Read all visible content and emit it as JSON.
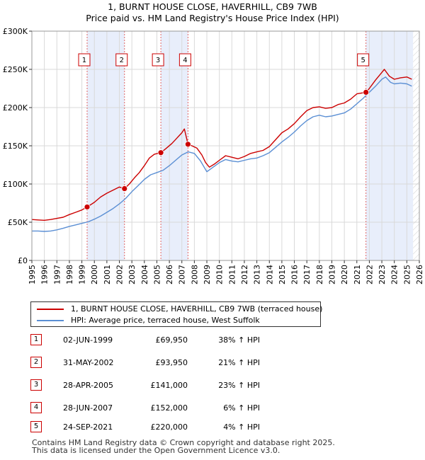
{
  "chart_data": {
    "type": "line",
    "title": "1, BURNT HOUSE CLOSE, HAVERHILL, CB9 7WB",
    "subtitle": "Price paid vs. HM Land Registry's House Price Index (HPI)",
    "xlabel": "",
    "ylabel": "",
    "xlim": [
      1995,
      2026
    ],
    "ylim": [
      0,
      300000
    ],
    "x_ticks": [
      "1995",
      "1996",
      "1997",
      "1998",
      "1999",
      "2000",
      "2001",
      "2002",
      "2003",
      "2004",
      "2005",
      "2006",
      "2007",
      "2008",
      "2009",
      "2010",
      "2011",
      "2012",
      "2013",
      "2014",
      "2015",
      "2016",
      "2017",
      "2018",
      "2019",
      "2020",
      "2021",
      "2022",
      "2023",
      "2024",
      "2025",
      "2026"
    ],
    "y_ticks": [
      {
        "value": 0,
        "label": "£0"
      },
      {
        "value": 50000,
        "label": "£50K"
      },
      {
        "value": 100000,
        "label": "£100K"
      },
      {
        "value": 150000,
        "label": "£150K"
      },
      {
        "value": 200000,
        "label": "£200K"
      },
      {
        "value": 250000,
        "label": "£250K"
      },
      {
        "value": 300000,
        "label": "£300K"
      }
    ],
    "grid": true,
    "series": [
      {
        "name": "1, BURNT HOUSE CLOSE, HAVERHILL, CB9 7WB (terraced house)",
        "color": "#cc0000",
        "points": [
          [
            1995.0,
            53500
          ],
          [
            1995.5,
            53000
          ],
          [
            1996.0,
            52500
          ],
          [
            1996.5,
            53500
          ],
          [
            1997.0,
            55000
          ],
          [
            1997.5,
            56500
          ],
          [
            1998.0,
            60000
          ],
          [
            1998.5,
            63000
          ],
          [
            1999.0,
            66000
          ],
          [
            1999.42,
            69950
          ],
          [
            2000.0,
            76000
          ],
          [
            2000.5,
            83000
          ],
          [
            2001.0,
            88000
          ],
          [
            2001.5,
            92000
          ],
          [
            2002.0,
            96000
          ],
          [
            2002.41,
            93950
          ],
          [
            2002.8,
            100000
          ],
          [
            2003.2,
            108000
          ],
          [
            2003.6,
            115000
          ],
          [
            2004.0,
            124000
          ],
          [
            2004.4,
            134000
          ],
          [
            2004.8,
            139000
          ],
          [
            2005.32,
            141000
          ],
          [
            2005.7,
            146000
          ],
          [
            2006.2,
            153000
          ],
          [
            2006.6,
            160000
          ],
          [
            2007.0,
            167000
          ],
          [
            2007.2,
            172000
          ],
          [
            2007.49,
            152000
          ],
          [
            2007.8,
            150000
          ],
          [
            2008.2,
            147000
          ],
          [
            2008.6,
            138000
          ],
          [
            2008.9,
            128000
          ],
          [
            2009.2,
            122000
          ],
          [
            2009.6,
            126000
          ],
          [
            2010.0,
            131000
          ],
          [
            2010.5,
            137000
          ],
          [
            2011.0,
            135000
          ],
          [
            2011.5,
            133000
          ],
          [
            2012.0,
            136000
          ],
          [
            2012.5,
            140000
          ],
          [
            2013.0,
            142000
          ],
          [
            2013.5,
            144000
          ],
          [
            2014.0,
            149000
          ],
          [
            2014.5,
            158000
          ],
          [
            2015.0,
            167000
          ],
          [
            2015.5,
            172000
          ],
          [
            2016.0,
            179000
          ],
          [
            2016.5,
            188000
          ],
          [
            2017.0,
            196000
          ],
          [
            2017.5,
            200000
          ],
          [
            2018.0,
            201000
          ],
          [
            2018.5,
            199000
          ],
          [
            2019.0,
            200000
          ],
          [
            2019.5,
            204000
          ],
          [
            2020.0,
            206000
          ],
          [
            2020.5,
            211000
          ],
          [
            2021.0,
            218000
          ],
          [
            2021.73,
            220000
          ],
          [
            2022.0,
            225000
          ],
          [
            2022.5,
            236000
          ],
          [
            2023.0,
            246000
          ],
          [
            2023.2,
            250000
          ],
          [
            2023.6,
            241000
          ],
          [
            2024.0,
            237000
          ],
          [
            2024.5,
            239000
          ],
          [
            2025.0,
            240000
          ],
          [
            2025.4,
            237000
          ]
        ]
      },
      {
        "name": "HPI: Average price, terraced house, West Suffolk",
        "color": "#5b8fd4",
        "points": [
          [
            1995.0,
            38500
          ],
          [
            1995.5,
            38500
          ],
          [
            1996.0,
            38000
          ],
          [
            1996.5,
            38500
          ],
          [
            1997.0,
            40000
          ],
          [
            1997.5,
            42000
          ],
          [
            1998.0,
            44500
          ],
          [
            1998.5,
            46500
          ],
          [
            1999.0,
            48500
          ],
          [
            1999.5,
            50500
          ],
          [
            2000.0,
            54000
          ],
          [
            2000.5,
            58000
          ],
          [
            2001.0,
            63000
          ],
          [
            2001.5,
            68000
          ],
          [
            2002.0,
            74000
          ],
          [
            2002.5,
            81000
          ],
          [
            2003.0,
            90000
          ],
          [
            2003.5,
            98000
          ],
          [
            2004.0,
            106000
          ],
          [
            2004.5,
            112000
          ],
          [
            2005.0,
            115000
          ],
          [
            2005.5,
            118000
          ],
          [
            2006.0,
            124000
          ],
          [
            2006.5,
            131000
          ],
          [
            2007.0,
            138000
          ],
          [
            2007.5,
            142000
          ],
          [
            2008.0,
            140000
          ],
          [
            2008.5,
            130000
          ],
          [
            2009.0,
            116000
          ],
          [
            2009.5,
            122000
          ],
          [
            2010.0,
            128000
          ],
          [
            2010.5,
            132000
          ],
          [
            2011.0,
            130000
          ],
          [
            2011.5,
            129000
          ],
          [
            2012.0,
            131000
          ],
          [
            2012.5,
            133000
          ],
          [
            2013.0,
            134000
          ],
          [
            2013.5,
            137000
          ],
          [
            2014.0,
            141000
          ],
          [
            2014.5,
            148000
          ],
          [
            2015.0,
            155000
          ],
          [
            2015.5,
            161000
          ],
          [
            2016.0,
            168000
          ],
          [
            2016.5,
            176000
          ],
          [
            2017.0,
            183000
          ],
          [
            2017.5,
            188000
          ],
          [
            2018.0,
            190000
          ],
          [
            2018.5,
            188000
          ],
          [
            2019.0,
            189000
          ],
          [
            2019.5,
            191000
          ],
          [
            2020.0,
            193000
          ],
          [
            2020.5,
            198000
          ],
          [
            2021.0,
            205000
          ],
          [
            2021.5,
            212000
          ],
          [
            2022.0,
            220000
          ],
          [
            2022.5,
            228000
          ],
          [
            2023.0,
            237000
          ],
          [
            2023.3,
            240000
          ],
          [
            2023.7,
            233000
          ],
          [
            2024.0,
            231000
          ],
          [
            2024.5,
            232000
          ],
          [
            2025.0,
            231000
          ],
          [
            2025.4,
            228000
          ]
        ]
      }
    ],
    "sales": [
      {
        "id": "1",
        "x": 1999.42,
        "price": 69950
      },
      {
        "id": "2",
        "x": 2002.41,
        "price": 93950
      },
      {
        "id": "3",
        "x": 2005.32,
        "price": 141000
      },
      {
        "id": "4",
        "x": 2007.49,
        "price": 152000
      },
      {
        "id": "5",
        "x": 2021.73,
        "price": 220000
      }
    ],
    "shaded_ranges": [
      [
        1999.42,
        2002.41
      ],
      [
        2005.32,
        2007.49
      ],
      [
        2021.73,
        2025.5
      ]
    ]
  },
  "legend": {
    "property_label": "1, BURNT HOUSE CLOSE, HAVERHILL, CB9 7WB (terraced house)",
    "hpi_label": "HPI: Average price, terraced house, West Suffolk",
    "property_color": "#cc0000",
    "hpi_color": "#5b8fd4"
  },
  "sales_table": [
    {
      "num": "1",
      "date": "02-JUN-1999",
      "price": "£69,950",
      "hpi": "38% ↑ HPI"
    },
    {
      "num": "2",
      "date": "31-MAY-2002",
      "price": "£93,950",
      "hpi": "21% ↑ HPI"
    },
    {
      "num": "3",
      "date": "28-APR-2005",
      "price": "£141,000",
      "hpi": "23% ↑ HPI"
    },
    {
      "num": "4",
      "date": "28-JUN-2007",
      "price": "£152,000",
      "hpi": "6% ↑ HPI"
    },
    {
      "num": "5",
      "date": "24-SEP-2021",
      "price": "£220,000",
      "hpi": "4% ↑ HPI"
    }
  ],
  "footer": {
    "line1": "Contains HM Land Registry data © Crown copyright and database right 2025.",
    "line2": "This data is licensed under the Open Government Licence v3.0."
  }
}
